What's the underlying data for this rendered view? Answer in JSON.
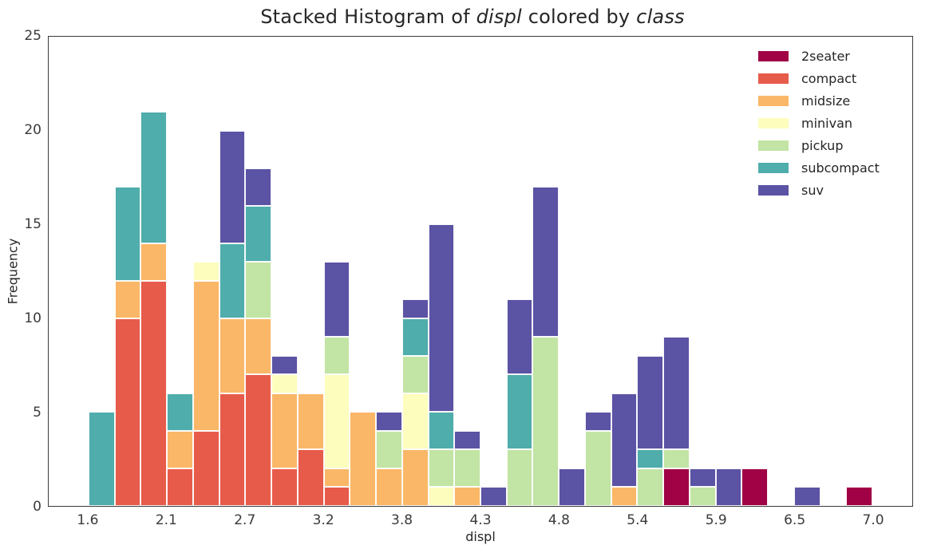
{
  "title": {
    "part1": "Stacked Histogram of ",
    "italic1": "displ",
    "part2": " colored by ",
    "italic2": "class"
  },
  "chart_data": {
    "type": "bar",
    "subtype": "stacked-histogram",
    "title": "Stacked Histogram of displ colored by class",
    "xlabel": "displ",
    "ylabel": "Frequency",
    "xlim": [
      1.326,
      7.274
    ],
    "ylim": [
      0,
      25
    ],
    "bin_start": 1.6,
    "bin_width": 0.18,
    "n_bins": 30,
    "bin_edges": [
      1.6,
      1.78,
      1.96,
      2.14,
      2.32,
      2.5,
      2.68,
      2.86,
      3.04,
      3.22,
      3.4,
      3.58,
      3.76,
      3.94,
      4.12,
      4.3,
      4.48,
      4.66,
      4.84,
      5.02,
      5.2,
      5.38,
      5.56,
      5.74,
      5.92,
      6.1,
      6.28,
      6.46,
      6.64,
      6.82,
      7.0
    ],
    "x_ticks": {
      "positions": [
        1.6,
        2.14,
        2.68,
        3.22,
        3.76,
        4.3,
        4.84,
        5.38,
        5.92,
        6.46,
        7.0
      ],
      "labels": [
        "1.6",
        "2.1",
        "2.7",
        "3.2",
        "3.8",
        "4.3",
        "4.8",
        "5.4",
        "5.9",
        "6.5",
        "7.0"
      ]
    },
    "y_ticks": [
      0,
      5,
      10,
      15,
      20,
      25
    ],
    "grid": false,
    "legend_position": "upper right",
    "series": [
      {
        "name": "2seater",
        "color": "#a00245",
        "values": [
          0,
          0,
          0,
          0,
          0,
          0,
          0,
          0,
          0,
          0,
          0,
          0,
          0,
          0,
          0,
          0,
          0,
          0,
          0,
          0,
          0,
          0,
          2,
          0,
          0,
          2,
          0,
          0,
          0,
          1
        ]
      },
      {
        "name": "compact",
        "color": "#e75b4a",
        "values": [
          0,
          10,
          12,
          2,
          4,
          6,
          7,
          2,
          3,
          1,
          0,
          0,
          0,
          0,
          0,
          0,
          0,
          0,
          0,
          0,
          0,
          0,
          0,
          0,
          0,
          0,
          0,
          0,
          0,
          0
        ]
      },
      {
        "name": "midsize",
        "color": "#fab768",
        "values": [
          0,
          2,
          2,
          2,
          8,
          4,
          3,
          4,
          3,
          1,
          5,
          2,
          3,
          0,
          1,
          0,
          0,
          0,
          0,
          0,
          1,
          0,
          0,
          0,
          0,
          0,
          0,
          0,
          0,
          0
        ]
      },
      {
        "name": "minivan",
        "color": "#fdfdbe",
        "values": [
          0,
          0,
          0,
          0,
          1,
          0,
          0,
          1,
          0,
          5,
          0,
          0,
          3,
          1,
          0,
          0,
          0,
          0,
          0,
          0,
          0,
          0,
          0,
          0,
          0,
          0,
          0,
          0,
          0,
          0
        ]
      },
      {
        "name": "pickup",
        "color": "#c2e4a4",
        "values": [
          0,
          0,
          0,
          0,
          0,
          0,
          3,
          0,
          0,
          2,
          0,
          2,
          2,
          2,
          2,
          0,
          3,
          9,
          0,
          4,
          0,
          2,
          1,
          1,
          0,
          0,
          0,
          0,
          0,
          0
        ]
      },
      {
        "name": "subcompact",
        "color": "#4fadab",
        "values": [
          5,
          5,
          7,
          2,
          0,
          4,
          3,
          0,
          0,
          0,
          0,
          0,
          2,
          2,
          0,
          0,
          4,
          0,
          0,
          0,
          0,
          1,
          0,
          0,
          0,
          0,
          0,
          0,
          0,
          0
        ]
      },
      {
        "name": "suv",
        "color": "#5b53a4",
        "values": [
          0,
          0,
          0,
          0,
          0,
          6,
          2,
          1,
          0,
          4,
          0,
          1,
          1,
          10,
          1,
          1,
          4,
          8,
          2,
          1,
          5,
          5,
          6,
          1,
          2,
          0,
          0,
          1,
          0,
          0
        ]
      }
    ],
    "totals": [
      5,
      17,
      21,
      6,
      13,
      20,
      18,
      8,
      6,
      13,
      5,
      5,
      11,
      15,
      4,
      1,
      11,
      17,
      2,
      5,
      6,
      8,
      9,
      2,
      2,
      2,
      0,
      1,
      0,
      1
    ]
  },
  "colors": {
    "spine": "#3a3a3a",
    "bar_edge": "#ffffff",
    "text": "#262626",
    "tick_text": "#3a3a3a",
    "background": "#ffffff"
  }
}
